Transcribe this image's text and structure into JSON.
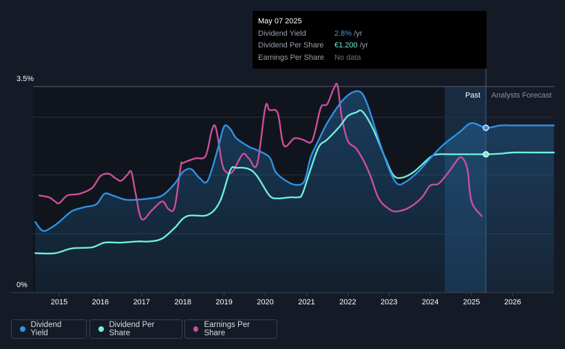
{
  "tooltip": {
    "date": "May 07 2025",
    "rows": [
      {
        "label": "Dividend Yield",
        "value": "2.8%",
        "unit": " /yr",
        "color": "#3d9ce8"
      },
      {
        "label": "Dividend Per Share",
        "value": "€1.200",
        "unit": " /yr",
        "color": "#72f0d8"
      },
      {
        "label": "Earnings Per Share",
        "value": "No data",
        "unit": "",
        "color": "#6b7280"
      }
    ]
  },
  "legend": [
    {
      "label": "Dividend Yield",
      "color": "#2e93e6"
    },
    {
      "label": "Dividend Per Share",
      "color": "#6ff0d9"
    },
    {
      "label": "Earnings Per Share",
      "color": "#cd4f9c"
    }
  ],
  "chart_data": {
    "type": "line",
    "y_tick_labels": [
      "3.5%",
      "0%"
    ],
    "ylim": [
      0,
      3.5
    ],
    "xlim": [
      2014.4,
      2027.0
    ],
    "x_tick_labels": [
      "2015",
      "2016",
      "2017",
      "2018",
      "2019",
      "2020",
      "2021",
      "2022",
      "2023",
      "2024",
      "2025",
      "2026"
    ],
    "past_label": "Past",
    "forecast_label": "Analysts Forecast",
    "past_end": 2025.35,
    "highlight_start": 2024.35,
    "grid": true,
    "series": [
      {
        "name": "Dividend Yield",
        "color": "#2e93e6",
        "area": true,
        "x": [
          2014.42,
          2014.6,
          2014.8,
          2015.0,
          2015.3,
          2015.6,
          2015.9,
          2016.1,
          2016.3,
          2016.6,
          2016.9,
          2017.2,
          2017.5,
          2017.8,
          2018.0,
          2018.2,
          2018.4,
          2018.6,
          2018.85,
          2019.0,
          2019.15,
          2019.3,
          2019.6,
          2019.8,
          2020.1,
          2020.25,
          2020.5,
          2020.75,
          2020.95,
          2021.1,
          2021.3,
          2021.5,
          2021.8,
          2022.0,
          2022.2,
          2022.35,
          2022.5,
          2022.75,
          2023.0,
          2023.2,
          2023.4,
          2023.7,
          2024.0,
          2024.3,
          2024.7,
          2025.0,
          2025.35,
          2025.7,
          2026.0,
          2026.5,
          2027.0
        ],
        "y": [
          1.2,
          1.05,
          1.1,
          1.2,
          1.38,
          1.45,
          1.5,
          1.68,
          1.65,
          1.58,
          1.58,
          1.6,
          1.65,
          1.85,
          2.05,
          2.1,
          1.95,
          1.9,
          2.45,
          2.82,
          2.78,
          2.62,
          2.48,
          2.42,
          2.3,
          2.05,
          1.9,
          1.83,
          1.9,
          2.3,
          2.6,
          2.88,
          3.2,
          3.35,
          3.42,
          3.38,
          3.15,
          2.6,
          2.1,
          1.85,
          1.88,
          2.05,
          2.28,
          2.5,
          2.72,
          2.88,
          2.8,
          2.84,
          2.84,
          2.84,
          2.84
        ]
      },
      {
        "name": "Dividend Per Share",
        "color": "#6ff0d9",
        "area": false,
        "x": [
          2014.42,
          2014.9,
          2015.3,
          2015.8,
          2016.1,
          2016.5,
          2016.9,
          2017.2,
          2017.5,
          2017.8,
          2018.1,
          2018.6,
          2018.9,
          2019.15,
          2019.3,
          2019.6,
          2019.8,
          2020.1,
          2020.3,
          2020.6,
          2020.8,
          2020.9,
          2021.1,
          2021.3,
          2021.5,
          2021.8,
          2022.0,
          2022.2,
          2022.35,
          2022.6,
          2022.9,
          2023.1,
          2023.3,
          2023.6,
          2024.0,
          2024.2,
          2024.5,
          2024.8,
          2025.0,
          2025.35,
          2025.7,
          2026.0,
          2026.5,
          2027.0
        ],
        "y": [
          0.67,
          0.67,
          0.75,
          0.77,
          0.85,
          0.85,
          0.87,
          0.87,
          0.92,
          1.1,
          1.3,
          1.32,
          1.55,
          2.08,
          2.12,
          2.1,
          1.98,
          1.65,
          1.6,
          1.62,
          1.62,
          1.68,
          2.1,
          2.48,
          2.6,
          2.82,
          3.0,
          3.06,
          3.08,
          2.8,
          2.3,
          2.0,
          1.95,
          2.05,
          2.3,
          2.35,
          2.35,
          2.35,
          2.35,
          2.35,
          2.36,
          2.38,
          2.38,
          2.38
        ]
      },
      {
        "name": "Earnings Per Share",
        "color": "#cd4f9c",
        "area": false,
        "x": [
          2014.52,
          2014.75,
          2014.9,
          2015.0,
          2015.2,
          2015.5,
          2015.8,
          2016.0,
          2016.2,
          2016.35,
          2016.5,
          2016.65,
          2016.75,
          2016.85,
          2017.0,
          2017.25,
          2017.5,
          2017.65,
          2017.8,
          2017.95,
          2018.0,
          2018.3,
          2018.55,
          2018.7,
          2018.8,
          2018.95,
          2019.05,
          2019.2,
          2019.45,
          2019.6,
          2019.8,
          2020.0,
          2020.1,
          2020.3,
          2020.45,
          2020.7,
          2020.9,
          2021.1,
          2021.2,
          2021.35,
          2021.5,
          2021.65,
          2021.75,
          2021.85,
          2022.0,
          2022.2,
          2022.4,
          2022.55,
          2022.75,
          2023.0,
          2023.2,
          2023.5,
          2023.8,
          2024.0,
          2024.2,
          2024.45,
          2024.6,
          2024.75,
          2024.9,
          2025.0,
          2025.25
        ],
        "y": [
          1.65,
          1.62,
          1.55,
          1.52,
          1.65,
          1.68,
          1.78,
          1.98,
          2.02,
          1.95,
          1.9,
          2.0,
          2.05,
          1.7,
          1.25,
          1.4,
          1.55,
          1.42,
          1.45,
          2.15,
          2.2,
          2.28,
          2.32,
          2.75,
          2.8,
          2.2,
          2.05,
          2.05,
          2.35,
          2.28,
          2.18,
          3.15,
          3.1,
          3.05,
          2.5,
          2.62,
          2.6,
          2.55,
          2.72,
          3.15,
          3.2,
          3.45,
          3.52,
          3.0,
          2.58,
          2.45,
          2.22,
          1.98,
          1.6,
          1.42,
          1.38,
          1.45,
          1.62,
          1.82,
          1.85,
          2.05,
          2.2,
          2.3,
          2.1,
          1.55,
          1.3
        ]
      }
    ]
  }
}
